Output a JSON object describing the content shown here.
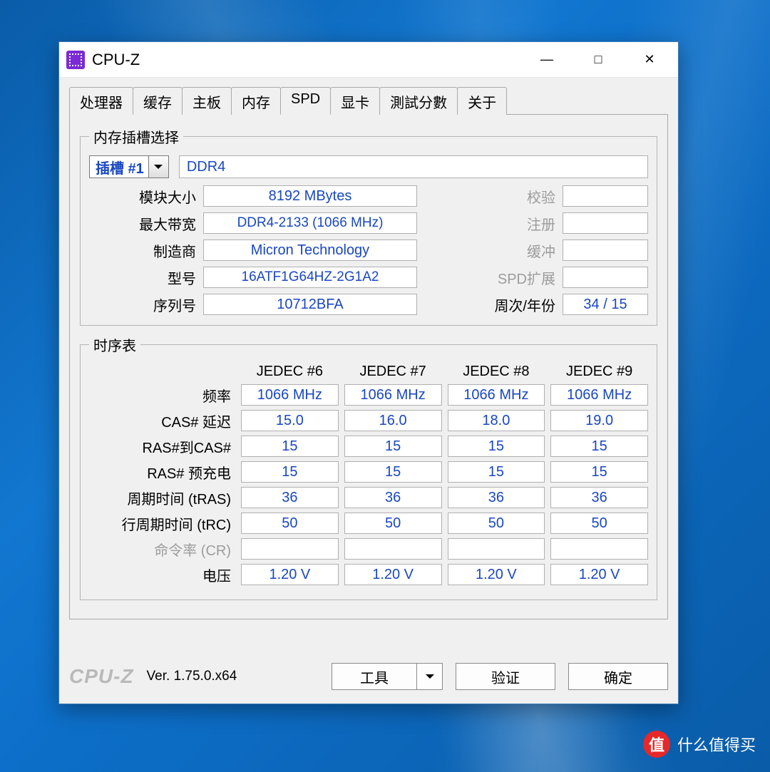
{
  "colors": {
    "desktop_gradient_from": "#0a5ca8",
    "desktop_gradient_mid": "#1277d0",
    "window_bg": "#ffffff",
    "client_bg": "#f0f0f0",
    "value_text": "#1947c3",
    "label_text": "#000000",
    "disabled_text": "#9c9c9c",
    "border": "#a9a9a9",
    "field_border": "#b0b0b0",
    "logo_gray": "#b9b9b9",
    "app_icon_bg": "#7a2bd6",
    "watermark_red": "#e62828"
  },
  "window": {
    "title": "CPU-Z",
    "controls": {
      "minimize": "—",
      "maximize": "□",
      "close": "✕"
    }
  },
  "tabs": [
    "处理器",
    "缓存",
    "主板",
    "内存",
    "SPD",
    "显卡",
    "測試分數",
    "关于"
  ],
  "active_tab_index": 4,
  "slot_group": {
    "legend": "内存插槽选择",
    "slot_label": "插槽 #1",
    "mem_type": "DDR4",
    "left_labels": {
      "module_size": "模块大小",
      "max_bandwidth": "最大带宽",
      "manufacturer": "制造商",
      "part_number": "型号",
      "serial": "序列号"
    },
    "left_values": {
      "module_size": "8192 MBytes",
      "max_bandwidth": "DDR4-2133 (1066 MHz)",
      "manufacturer": "Micron Technology",
      "part_number": "16ATF1G64HZ-2G1A2",
      "serial": "10712BFA"
    },
    "right_labels": {
      "correction": "校验",
      "registered": "注册",
      "buffered": "缓冲",
      "spd_ext": "SPD扩展",
      "week_year": "周次/年份"
    },
    "right_values": {
      "correction": "",
      "registered": "",
      "buffered": "",
      "spd_ext": "",
      "week_year": "34 / 15"
    }
  },
  "timing_group": {
    "legend": "时序表",
    "headers": [
      "JEDEC #6",
      "JEDEC #7",
      "JEDEC #8",
      "JEDEC #9"
    ],
    "rows": [
      {
        "label": "频率",
        "disabled": false,
        "v": [
          "1066 MHz",
          "1066 MHz",
          "1066 MHz",
          "1066 MHz"
        ]
      },
      {
        "label": "CAS# 延迟",
        "disabled": false,
        "v": [
          "15.0",
          "16.0",
          "18.0",
          "19.0"
        ]
      },
      {
        "label": "RAS#到CAS#",
        "disabled": false,
        "v": [
          "15",
          "15",
          "15",
          "15"
        ]
      },
      {
        "label": "RAS# 预充电",
        "disabled": false,
        "v": [
          "15",
          "15",
          "15",
          "15"
        ]
      },
      {
        "label": "周期时间 (tRAS)",
        "disabled": false,
        "v": [
          "36",
          "36",
          "36",
          "36"
        ]
      },
      {
        "label": "行周期时间 (tRC)",
        "disabled": false,
        "v": [
          "50",
          "50",
          "50",
          "50"
        ]
      },
      {
        "label": "命令率 (CR)",
        "disabled": true,
        "v": [
          "",
          "",
          "",
          ""
        ]
      },
      {
        "label": "电压",
        "disabled": false,
        "v": [
          "1.20 V",
          "1.20 V",
          "1.20 V",
          "1.20 V"
        ]
      }
    ]
  },
  "footer": {
    "logo": "CPU-Z",
    "version": "Ver. 1.75.0.x64",
    "tools": "工具",
    "validate": "验证",
    "ok": "确定"
  },
  "watermark": {
    "badge": "值",
    "text": "什么值得买"
  }
}
